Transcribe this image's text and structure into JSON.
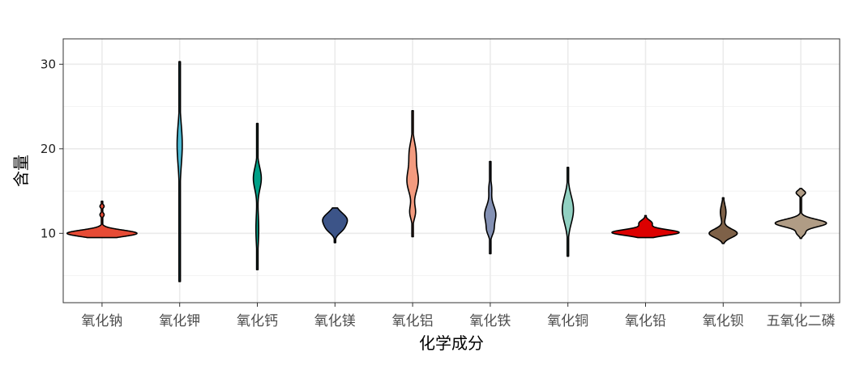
{
  "chart_data": {
    "type": "violin",
    "title": "",
    "xlabel": "化学成分",
    "ylabel": "含量",
    "ylim": [
      1.8,
      33
    ],
    "y_ticks": [
      10,
      20,
      30
    ],
    "y_minor_ticks": [
      5,
      15,
      25
    ],
    "grid": true,
    "legend": "none",
    "categories": [
      "氧化钠",
      "氧化钾",
      "氧化钙",
      "氧化镁",
      "氧化铝",
      "氧化铁",
      "氧化铜",
      "氧化铅",
      "氧化钡",
      "五氧化二磷"
    ],
    "series": [
      {
        "name": "氧化钠",
        "color": "#E64B35",
        "min": 9.5,
        "max": 13.8,
        "peaks": [
          [
            10.0,
            0.75,
            0.38
          ],
          [
            12.2,
            0.045,
            0.22
          ],
          [
            13.2,
            0.045,
            0.2
          ]
        ]
      },
      {
        "name": "氧化钾",
        "color": "#4DBBD5",
        "min": 4.3,
        "max": 30.3,
        "peaks": [
          [
            20.5,
            0.055,
            2.4
          ],
          [
            13.0,
            0.008,
            3.0
          ]
        ]
      },
      {
        "name": "氧化钙",
        "color": "#00A087",
        "min": 5.7,
        "max": 23.0,
        "peaks": [
          [
            16.5,
            0.085,
            1.3
          ],
          [
            10.5,
            0.03,
            2.0
          ]
        ]
      },
      {
        "name": "氧化镁",
        "color": "#3C5488",
        "min": 8.9,
        "max": 13.0,
        "peaks": [
          [
            11.6,
            0.26,
            0.8
          ],
          [
            10.4,
            0.09,
            0.5
          ]
        ]
      },
      {
        "name": "氧化铝",
        "color": "#F39B7F",
        "min": 9.6,
        "max": 24.5,
        "peaks": [
          [
            16.2,
            0.12,
            1.4
          ],
          [
            19.5,
            0.07,
            1.3
          ],
          [
            12.5,
            0.06,
            0.8
          ]
        ]
      },
      {
        "name": "氧化铁",
        "color": "#8491B4",
        "min": 7.6,
        "max": 18.5,
        "peaks": [
          [
            12.2,
            0.12,
            1.1
          ],
          [
            10.3,
            0.05,
            0.6
          ],
          [
            15.3,
            0.03,
            0.8
          ]
        ]
      },
      {
        "name": "氧化铜",
        "color": "#91D1C2",
        "min": 7.3,
        "max": 17.8,
        "peaks": [
          [
            12.8,
            0.12,
            1.6
          ]
        ]
      },
      {
        "name": "氧化铅",
        "color": "#DC0000",
        "min": 9.5,
        "max": 12.1,
        "peaks": [
          [
            10.1,
            0.72,
            0.35
          ],
          [
            11.2,
            0.14,
            0.35
          ]
        ]
      },
      {
        "name": "氧化钡",
        "color": "#7E6148",
        "min": 8.8,
        "max": 14.2,
        "peaks": [
          [
            10.0,
            0.3,
            0.5
          ],
          [
            12.5,
            0.06,
            0.9
          ]
        ]
      },
      {
        "name": "五氧化二磷",
        "color": "#B09C85",
        "min": 9.4,
        "max": 15.3,
        "peaks": [
          [
            11.2,
            0.55,
            0.45
          ],
          [
            10.0,
            0.08,
            0.3
          ],
          [
            14.8,
            0.1,
            0.28
          ]
        ]
      }
    ]
  }
}
